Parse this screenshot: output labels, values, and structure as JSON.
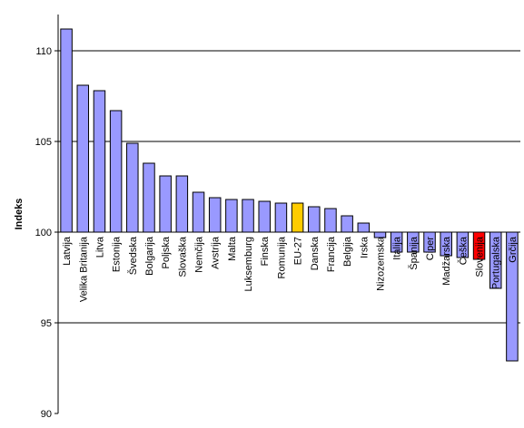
{
  "chart_data": {
    "type": "bar",
    "title": "",
    "xlabel": "",
    "ylabel": "Indeks",
    "ylim": [
      90,
      112
    ],
    "yticks": [
      90,
      95,
      100,
      105,
      110
    ],
    "baseline": 100,
    "grid": true,
    "legend": "none",
    "categories": [
      "Latvija",
      "Velika Britanija",
      "Litva",
      "Estonija",
      "Švedska",
      "Bolgarija",
      "Poljska",
      "Slovaška",
      "Nemčija",
      "Avstrija",
      "Malta",
      "Luksemburg",
      "Finska",
      "Romunija",
      "EU-27",
      "Danska",
      "Francija",
      "Belgija",
      "Irska",
      "Nizozemska",
      "Italija",
      "Španija",
      "Ciper",
      "Madžarska",
      "Češka",
      "Slovenija",
      "Portugalska",
      "Grčija"
    ],
    "values": [
      111.2,
      108.1,
      107.8,
      106.7,
      104.9,
      103.8,
      103.1,
      103.1,
      102.2,
      101.9,
      101.8,
      101.8,
      101.7,
      101.6,
      101.6,
      101.4,
      101.3,
      100.9,
      100.5,
      99.7,
      98.9,
      98.9,
      98.9,
      98.7,
      98.6,
      98.5,
      96.9,
      92.9
    ],
    "colors": {
      "default": "#9999ff",
      "highlight_eu": "#ffcc00",
      "highlight_si": "#ff0000",
      "grid": "#000000"
    },
    "highlights": {
      "EU-27": "#ffcc00",
      "Slovenija": "#ff0000"
    }
  }
}
